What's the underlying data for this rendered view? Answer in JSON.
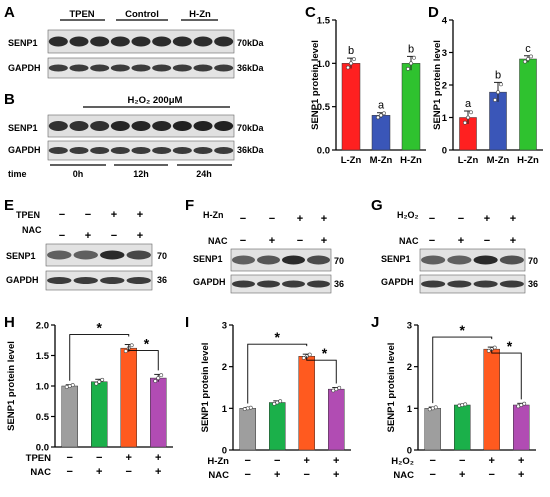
{
  "panel_letters": [
    "A",
    "B",
    "C",
    "D",
    "E",
    "F",
    "G",
    "H",
    "I",
    "J"
  ],
  "colors": {
    "gray": "#9e9e9e",
    "green": "#1bb04a",
    "orange": "#ff5a1f",
    "purple": "#b14cb3",
    "red": "#ff2020",
    "blue": "#3a56b8",
    "lime": "#2fc22f"
  },
  "blots": {
    "A": {
      "groups": [
        "TPEN",
        "Control",
        "H-Zn"
      ],
      "rows": [
        {
          "label": "SENP1",
          "marker": "70kDa"
        },
        {
          "label": "GAPDH",
          "marker": "36kDa"
        }
      ]
    },
    "B": {
      "header": "H₂O₂ 200μM",
      "rows": [
        {
          "label": "SENP1",
          "marker": "70kDa"
        },
        {
          "label": "GAPDH",
          "marker": "36kDa"
        }
      ],
      "time_label": "time",
      "times": [
        "0h",
        "12h",
        "24h"
      ]
    },
    "E": {
      "conditions": [
        {
          "label": "TPEN",
          "signs": [
            "−",
            "−",
            "+",
            "+"
          ]
        },
        {
          "label": "NAC",
          "signs": [
            "−",
            "+",
            "−",
            "+"
          ]
        }
      ],
      "rows": [
        {
          "label": "SENP1",
          "marker": "70"
        },
        {
          "label": "GAPDH",
          "marker": "36"
        }
      ]
    },
    "F": {
      "conditions": [
        {
          "label": "H-Zn",
          "signs": [
            "−",
            "−",
            "+",
            "+"
          ]
        },
        {
          "label": "NAC",
          "signs": [
            "−",
            "+",
            "−",
            "+"
          ]
        }
      ],
      "rows": [
        {
          "label": "SENP1",
          "marker": "70"
        },
        {
          "label": "GAPDH",
          "marker": "36"
        }
      ]
    },
    "G": {
      "conditions": [
        {
          "label": "H₂O₂",
          "signs": [
            "−",
            "−",
            "+",
            "+"
          ]
        },
        {
          "label": "NAC",
          "signs": [
            "−",
            "+",
            "−",
            "+"
          ]
        }
      ],
      "rows": [
        {
          "label": "SENP1",
          "marker": "70"
        },
        {
          "label": "GAPDH",
          "marker": "36"
        }
      ]
    }
  },
  "chart_data": [
    {
      "panel": "C",
      "type": "bar",
      "ylabel": "SENP1 protein level",
      "ylim": [
        0,
        1.5
      ],
      "yticks": [
        "0.0",
        "0.5",
        "1.0",
        "1.5"
      ],
      "categories": [
        "L-Zn",
        "M-Zn",
        "H-Zn"
      ],
      "values": [
        1.0,
        0.4,
        1.0
      ],
      "errors": [
        0.06,
        0.03,
        0.08
      ],
      "letters": [
        "b",
        "a",
        "b"
      ],
      "colors": [
        "#ff2020",
        "#3a56b8",
        "#2fc22f"
      ]
    },
    {
      "panel": "D",
      "type": "bar",
      "ylabel": "SENP1 protein level",
      "ylim": [
        0,
        4
      ],
      "yticks": [
        "0",
        "1",
        "2",
        "3",
        "4"
      ],
      "categories": [
        "L-Zn",
        "M-Zn",
        "H-Zn"
      ],
      "values": [
        1.0,
        1.78,
        2.8
      ],
      "errors": [
        0.2,
        0.3,
        0.1
      ],
      "letters": [
        "a",
        "b",
        "c"
      ],
      "colors": [
        "#ff2020",
        "#3a56b8",
        "#2fc22f"
      ]
    },
    {
      "panel": "H",
      "type": "bar",
      "ylabel": "SENP1 protein level",
      "ylim": [
        0,
        2.0
      ],
      "yticks": [
        "0.0",
        "0.5",
        "1.0",
        "1.5",
        "2.0"
      ],
      "values": [
        1.0,
        1.07,
        1.62,
        1.13
      ],
      "errors": [
        0.02,
        0.04,
        0.06,
        0.06
      ],
      "conditions": [
        {
          "label": "TPEN",
          "signs": [
            "−",
            "−",
            "+",
            "+"
          ]
        },
        {
          "label": "NAC",
          "signs": [
            "−",
            "+",
            "−",
            "+"
          ]
        }
      ],
      "significance": [
        "*",
        "*"
      ]
    },
    {
      "panel": "I",
      "type": "bar",
      "ylabel": "SENP1 protein level",
      "ylim": [
        0,
        3
      ],
      "yticks": [
        "0",
        "1",
        "2",
        "3"
      ],
      "values": [
        1.0,
        1.14,
        2.25,
        1.46
      ],
      "errors": [
        0.02,
        0.04,
        0.05,
        0.04
      ],
      "conditions": [
        {
          "label": "H-Zn",
          "signs": [
            "−",
            "−",
            "+",
            "+"
          ]
        },
        {
          "label": "NAC",
          "signs": [
            "−",
            "+",
            "−",
            "+"
          ]
        }
      ],
      "significance": [
        "*",
        "*"
      ]
    },
    {
      "panel": "J",
      "type": "bar",
      "ylabel": "SENP1 protein level",
      "ylim": [
        0,
        3
      ],
      "yticks": [
        "0",
        "1",
        "2",
        "3"
      ],
      "values": [
        1.0,
        1.08,
        2.42,
        1.08
      ],
      "errors": [
        0.03,
        0.02,
        0.05,
        0.04
      ],
      "conditions": [
        {
          "label": "H₂O₂",
          "signs": [
            "−",
            "−",
            "+",
            "+"
          ]
        },
        {
          "label": "NAC",
          "signs": [
            "−",
            "+",
            "−",
            "+"
          ]
        }
      ],
      "significance": [
        "*",
        "*"
      ]
    }
  ]
}
